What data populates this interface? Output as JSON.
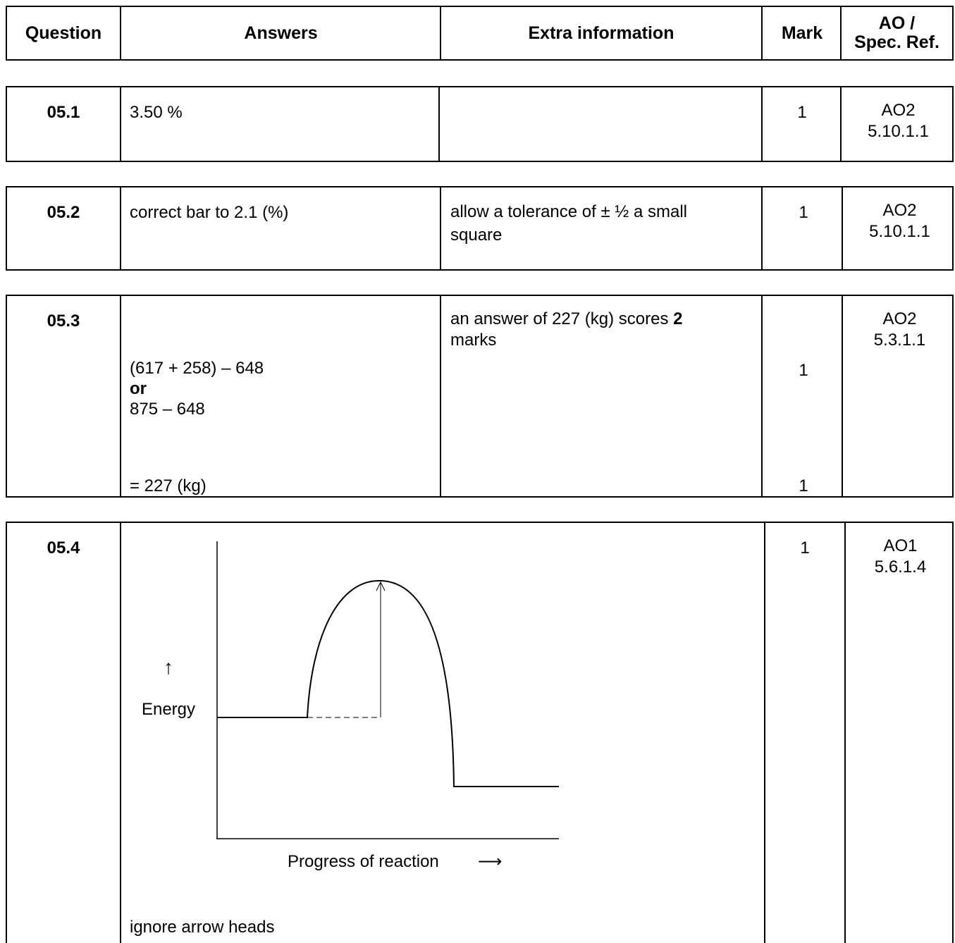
{
  "header": {
    "question": "Question",
    "answers": "Answers",
    "extra_information": "Extra information",
    "mark": "Mark",
    "ao_line1": "AO /",
    "ao_line2": "Spec. Ref."
  },
  "rows": [
    {
      "question": "05.1",
      "answer": "3.50 %",
      "extra": "",
      "mark": "1",
      "ao": "AO2",
      "spec": "5.10.1.1"
    },
    {
      "question": "05.2",
      "answer": "correct bar to 2.1 (%)",
      "extra_line1": "allow a tolerance of ± ½ a small",
      "extra_line2": "square",
      "mark": "1",
      "ao": "AO2",
      "spec": "5.10.1.1"
    },
    {
      "question": "05.3",
      "answer_line1": "(617 + 258) – 648",
      "answer_or": "or",
      "answer_line2": "875 – 648",
      "answer_final": "= 227 (kg)",
      "extra_prefix": "an answer of 227 (kg) scores ",
      "extra_bold": "2",
      "extra_suffix": "marks",
      "mark_1": "1",
      "mark_2": "1",
      "ao": "AO2",
      "spec": "5.3.1.1"
    },
    {
      "question": "05.4",
      "diagram": {
        "y_label": "Energy",
        "x_label": "Progress of reaction",
        "x_arrow": "⟶",
        "y_arrow": "↑"
      },
      "note": "ignore arrow heads",
      "mark": "1",
      "ao": "AO1",
      "spec": "5.6.1.4"
    }
  ]
}
